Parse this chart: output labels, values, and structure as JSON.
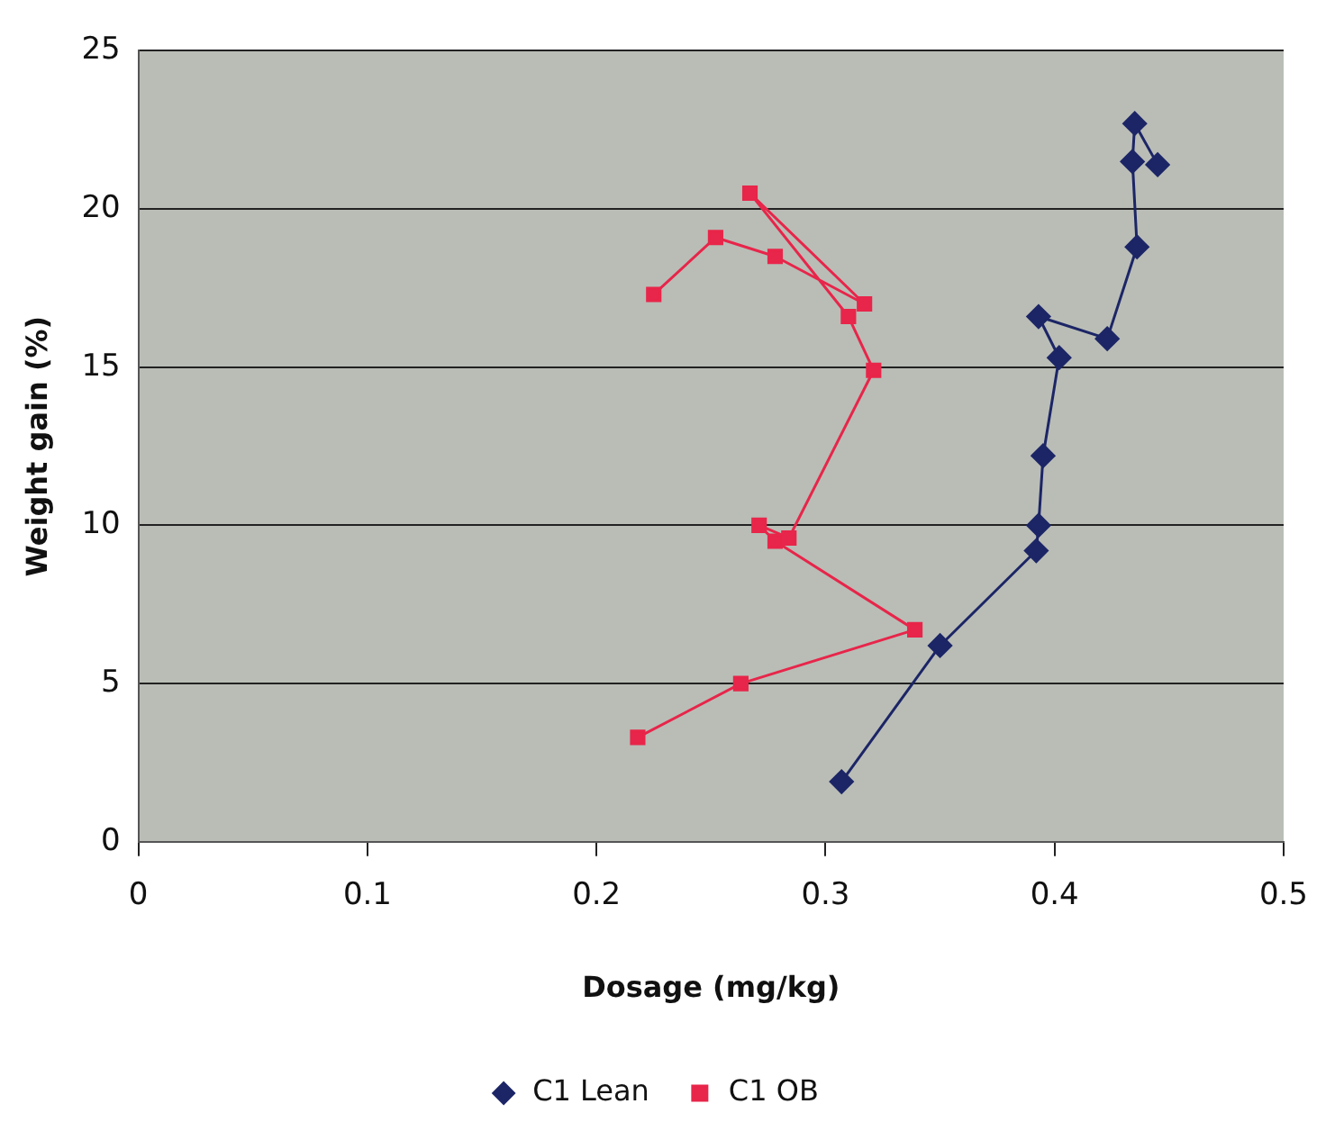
{
  "chart_data": {
    "type": "line",
    "xlabel": "Dosage (mg/kg)",
    "ylabel": "Weight gain (%)",
    "xlim": [
      0,
      0.5
    ],
    "xticks": [
      0,
      0.1,
      0.2,
      0.3,
      0.4,
      0.5
    ],
    "ylim": [
      0,
      25
    ],
    "yticks": [
      0,
      5,
      10,
      15,
      20,
      25
    ],
    "grid": "y",
    "legend": "bottom",
    "line_style": "solid",
    "series": [
      {
        "name": "C1 Lean",
        "color": "#1c2566",
        "marker": "diamond",
        "x": [
          0.307,
          0.35,
          0.392,
          0.393,
          0.395,
          0.402,
          0.393,
          0.423,
          0.436,
          0.434,
          0.435,
          0.445
        ],
        "values": [
          1.9,
          6.2,
          9.2,
          10,
          12.2,
          15.3,
          16.6,
          15.9,
          18.8,
          21.5,
          22.7,
          21.4
        ]
      },
      {
        "name": "C1 OB",
        "color": "#e8254a",
        "marker": "square",
        "x": [
          0.218,
          0.263,
          0.339,
          0.278,
          0.271,
          0.284,
          0.321,
          0.31,
          0.267,
          0.317,
          0.278,
          0.252,
          0.225
        ],
        "values": [
          3.3,
          5,
          6.7,
          9.5,
          10,
          9.6,
          14.9,
          16.6,
          20.5,
          17,
          18.5,
          19.1,
          17.3
        ]
      }
    ]
  }
}
